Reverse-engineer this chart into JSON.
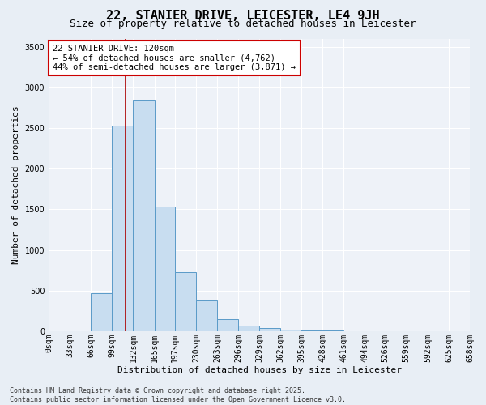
{
  "title": "22, STANIER DRIVE, LEICESTER, LE4 9JH",
  "subtitle": "Size of property relative to detached houses in Leicester",
  "xlabel": "Distribution of detached houses by size in Leicester",
  "ylabel": "Number of detached properties",
  "bin_edges": [
    0,
    33,
    66,
    99,
    132,
    165,
    197,
    230,
    263,
    296,
    329,
    362,
    395,
    428,
    461,
    494,
    526,
    559,
    592,
    625,
    658
  ],
  "bin_labels": [
    "0sqm",
    "33sqm",
    "66sqm",
    "99sqm",
    "132sqm",
    "165sqm",
    "197sqm",
    "230sqm",
    "263sqm",
    "296sqm",
    "329sqm",
    "362sqm",
    "395sqm",
    "428sqm",
    "461sqm",
    "494sqm",
    "526sqm",
    "559sqm",
    "592sqm",
    "625sqm",
    "658sqm"
  ],
  "bar_heights": [
    0,
    0,
    470,
    2530,
    2840,
    1530,
    730,
    385,
    150,
    70,
    40,
    20,
    10,
    5,
    3,
    2,
    1,
    0,
    0,
    0
  ],
  "bar_color": "#c8ddf0",
  "bar_edgecolor": "#5a9ac8",
  "property_size": 120,
  "vline_color": "#aa0000",
  "ylim": [
    0,
    3600
  ],
  "yticks": [
    0,
    500,
    1000,
    1500,
    2000,
    2500,
    3000,
    3500
  ],
  "annotation_text": "22 STANIER DRIVE: 120sqm\n← 54% of detached houses are smaller (4,762)\n44% of semi-detached houses are larger (3,871) →",
  "annotation_box_facecolor": "#ffffff",
  "annotation_border_color": "#cc0000",
  "footer_line1": "Contains HM Land Registry data © Crown copyright and database right 2025.",
  "footer_line2": "Contains public sector information licensed under the Open Government Licence v3.0.",
  "fig_facecolor": "#e8eef5",
  "plot_facecolor": "#eef2f8",
  "grid_color": "#ffffff",
  "title_fontsize": 11,
  "subtitle_fontsize": 9,
  "xlabel_fontsize": 8,
  "ylabel_fontsize": 8,
  "tick_fontsize": 7,
  "annotation_fontsize": 7.5,
  "footer_fontsize": 6
}
